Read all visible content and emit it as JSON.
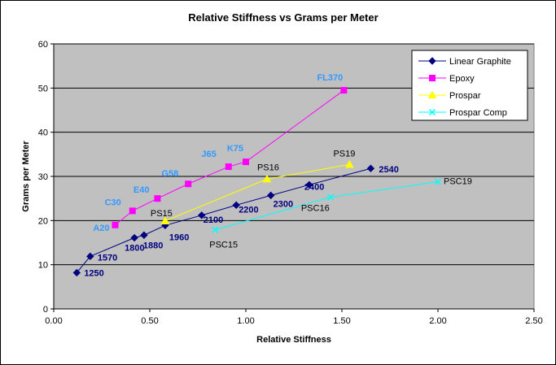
{
  "chart_data": {
    "type": "scatter",
    "title": "Relative Stiffness vs Grams per Meter",
    "xlabel": "Relative Stiffness",
    "ylabel": "Grams per Meter",
    "xlim": [
      0,
      2.5
    ],
    "ylim": [
      0,
      60
    ],
    "x_ticks": [
      "0.00",
      "0.50",
      "1.00",
      "1.50",
      "2.00",
      "2.50"
    ],
    "y_ticks": [
      "0",
      "10",
      "20",
      "30",
      "40",
      "50",
      "60"
    ],
    "grid": "horizontal",
    "legend_position": "top-right",
    "colors": {
      "plot_background": "#c0c0c0",
      "chart_background": "#ffffff"
    },
    "series": [
      {
        "name": "Linear Graphite",
        "color": "#000080",
        "label_color": "#000080",
        "marker": "diamond",
        "label_bold": true,
        "points": [
          {
            "x": 0.12,
            "y": 8.2,
            "label": "1250"
          },
          {
            "x": 0.19,
            "y": 11.9,
            "label": "1570"
          },
          {
            "x": 0.42,
            "y": 16.1,
            "label": "1800"
          },
          {
            "x": 0.47,
            "y": 16.7,
            "label": "1880"
          },
          {
            "x": 0.58,
            "y": 18.9,
            "label": "1960"
          },
          {
            "x": 0.77,
            "y": 21.2,
            "label": "2100"
          },
          {
            "x": 0.95,
            "y": 23.5,
            "label": "2200"
          },
          {
            "x": 1.13,
            "y": 25.7,
            "label": "2300"
          },
          {
            "x": 1.33,
            "y": 28.1,
            "label": "2400"
          },
          {
            "x": 1.65,
            "y": 31.8,
            "label": "2540"
          }
        ]
      },
      {
        "name": "Epoxy",
        "color": "#ff00ff",
        "label_color": "#3399ff",
        "marker": "square",
        "label_bold": true,
        "points": [
          {
            "x": 0.32,
            "y": 19.0,
            "label": "A20"
          },
          {
            "x": 0.41,
            "y": 22.2,
            "label": "C30"
          },
          {
            "x": 0.54,
            "y": 25.0,
            "label": "E40"
          },
          {
            "x": 0.7,
            "y": 28.3,
            "label": "G58"
          },
          {
            "x": 0.91,
            "y": 32.2,
            "label": "J65"
          },
          {
            "x": 1.0,
            "y": 33.3,
            "label": "K75"
          },
          {
            "x": 1.51,
            "y": 49.5,
            "label": "FL370"
          }
        ]
      },
      {
        "name": "Prospar",
        "color": "#ffff00",
        "label_color": "#000000",
        "marker": "triangle",
        "label_bold": false,
        "points": [
          {
            "x": 0.58,
            "y": 19.9,
            "label": "PS15"
          },
          {
            "x": 1.11,
            "y": 29.4,
            "label": "PS16"
          },
          {
            "x": 1.54,
            "y": 32.7,
            "label": "PS19"
          }
        ]
      },
      {
        "name": "Prospar Comp",
        "color": "#00ffff",
        "label_color": "#000000",
        "marker": "x",
        "label_bold": false,
        "points": [
          {
            "x": 0.84,
            "y": 17.9,
            "label": "PSC15"
          },
          {
            "x": 1.44,
            "y": 25.3,
            "label": "PSC16"
          },
          {
            "x": 2.0,
            "y": 28.8,
            "label": "PSC19"
          }
        ]
      }
    ]
  }
}
